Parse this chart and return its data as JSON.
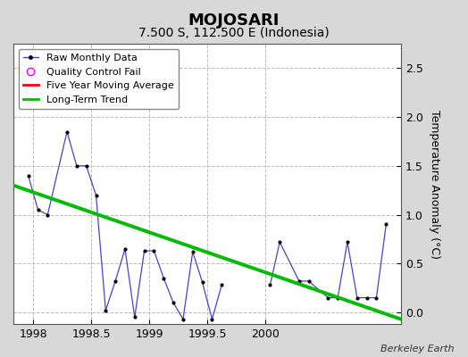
{
  "title": "MOJOSARI",
  "subtitle": "7.500 S, 112.500 E (Indonesia)",
  "ylabel": "Temperature Anomaly (°C)",
  "credit": "Berkeley Earth",
  "xlim": [
    1997.83,
    2001.17
  ],
  "ylim": [
    -0.12,
    2.75
  ],
  "yticks": [
    0,
    0.5,
    1.0,
    1.5,
    2.0,
    2.5
  ],
  "xticks": [
    1998,
    1998.5,
    1999,
    1999.5,
    2000
  ],
  "xticklabels": [
    "1998",
    "1998.5",
    "1999",
    "1999.5",
    "2000"
  ],
  "raw_segment1_x": [
    1997.958,
    1998.042,
    1998.125,
    1998.292,
    1998.375,
    1998.458,
    1998.542,
    1998.625,
    1998.708,
    1998.792,
    1998.875,
    1998.958,
    1999.042,
    1999.125,
    1999.208,
    1999.292,
    1999.375,
    1999.458,
    1999.542,
    1999.625
  ],
  "raw_segment1_y": [
    1.4,
    1.05,
    1.0,
    1.85,
    1.5,
    1.5,
    1.2,
    0.02,
    0.32,
    0.65,
    -0.05,
    0.63,
    0.63,
    0.35,
    0.1,
    -0.07,
    0.62,
    0.31,
    -0.07,
    0.28
  ],
  "raw_segment2_x": [
    2000.042,
    2000.125,
    2000.292,
    2000.375,
    2000.542,
    2000.625,
    2000.708,
    2000.792,
    2000.875,
    2000.958,
    2001.042
  ],
  "raw_segment2_y": [
    0.28,
    0.72,
    0.32,
    0.32,
    0.15,
    0.15,
    0.72,
    0.15,
    0.15,
    0.15,
    0.9
  ],
  "trend_x": [
    1997.83,
    2001.17
  ],
  "trend_y": [
    1.3,
    -0.07
  ],
  "raw_color": "#4444cc",
  "trend_color": "#00bb00",
  "moving_avg_color": "#ff0000",
  "bg_color": "#d8d8d8",
  "plot_bg_color": "#ffffff",
  "grid_color": "#bbbbbb",
  "title_fontsize": 13,
  "subtitle_fontsize": 10,
  "label_fontsize": 9,
  "tick_fontsize": 9
}
